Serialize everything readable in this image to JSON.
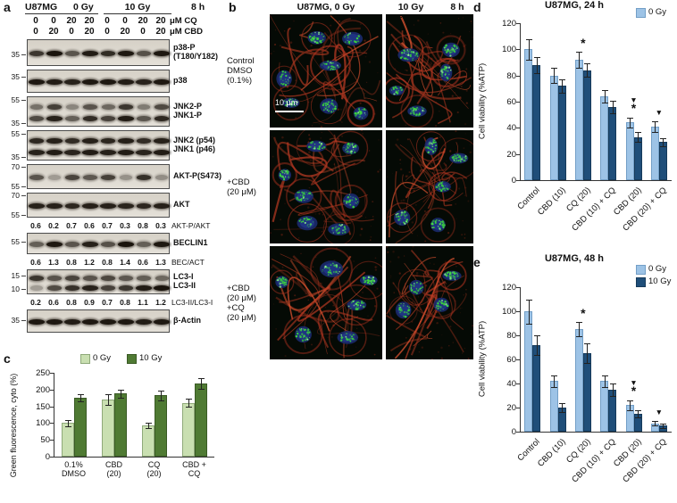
{
  "panels": {
    "a": {
      "panel_label": "a",
      "header": {
        "cell_line": "U87MG",
        "dose_left": "0 Gy",
        "dose_right": "10 Gy",
        "time": "8 h"
      },
      "dose_rows": [
        {
          "values": [
            "0",
            "0",
            "20",
            "20",
            "0",
            "0",
            "20",
            "20"
          ],
          "unit": "μM CQ"
        },
        {
          "values": [
            "0",
            "20",
            "0",
            "20",
            "0",
            "20",
            "0",
            "20"
          ],
          "unit": "μM CBD"
        }
      ],
      "items": [
        {
          "type": "strip",
          "h": 30,
          "label_lines": [
            "p38-P",
            "(T180/Y182)"
          ],
          "markers": [
            {
              "t": "35",
              "f": 0.55
            }
          ],
          "bands": [
            [
              0.75,
              0.92,
              0.6,
              0.88,
              0.8,
              0.9,
              0.62,
              0.9
            ]
          ]
        },
        {
          "type": "strip",
          "h": 26,
          "label_lines": [
            "p38"
          ],
          "markers": [
            {
              "t": "35",
              "f": 0.3
            }
          ],
          "bands": [
            [
              0.9,
              0.88,
              0.85,
              0.9,
              0.9,
              0.88,
              0.85,
              0.9
            ]
          ]
        },
        {
          "type": "strip",
          "h": 34,
          "label_lines": [
            "JNK2-P",
            "JNK1-P"
          ],
          "markers": [
            {
              "t": "55",
              "f": 0.12
            },
            {
              "t": "35",
              "f": 0.88
            }
          ],
          "bands": [
            [
              0.45,
              0.7,
              0.35,
              0.6,
              0.5,
              0.75,
              0.4,
              0.65
            ],
            [
              0.65,
              0.85,
              0.55,
              0.8,
              0.7,
              0.88,
              0.6,
              0.82
            ]
          ]
        },
        {
          "type": "strip",
          "h": 34,
          "label_lines": [
            "JNK2 (p54)",
            "JNK1 (p46)"
          ],
          "markers": [
            {
              "t": "55",
              "f": 0.12
            },
            {
              "t": "35",
              "f": 0.88
            }
          ],
          "bands": [
            [
              0.82,
              0.85,
              0.8,
              0.85,
              0.83,
              0.86,
              0.8,
              0.85
            ],
            [
              0.85,
              0.88,
              0.84,
              0.88,
              0.86,
              0.88,
              0.84,
              0.88
            ]
          ]
        },
        {
          "type": "strip",
          "h": 28,
          "label_lines": [
            "AKT-P(S473)"
          ],
          "markers": [
            {
              "t": "70",
              "f": 0.12
            },
            {
              "t": "55",
              "f": 0.88
            }
          ],
          "bands": [
            [
              0.6,
              0.25,
              0.68,
              0.58,
              0.7,
              0.3,
              0.78,
              0.32
            ]
          ]
        },
        {
          "type": "strip",
          "h": 28,
          "label_lines": [
            "AKT"
          ],
          "markers": [
            {
              "t": "70",
              "f": 0.12
            },
            {
              "t": "55",
              "f": 0.88
            }
          ],
          "bands": [
            [
              0.85,
              0.85,
              0.83,
              0.86,
              0.85,
              0.84,
              0.83,
              0.86
            ]
          ]
        },
        {
          "type": "ratios",
          "values": [
            "0.6",
            "0.2",
            "0.7",
            "0.6",
            "0.7",
            "0.3",
            "0.8",
            "0.3"
          ],
          "label": "AKT-P/AKT"
        },
        {
          "type": "strip",
          "h": 24,
          "label_lines": [
            "BECLIN1"
          ],
          "markers": [
            {
              "t": "55",
              "f": 0.4
            }
          ],
          "bands": [
            [
              0.55,
              0.9,
              0.6,
              0.85,
              0.62,
              0.92,
              0.55,
              0.9
            ]
          ]
        },
        {
          "type": "ratios",
          "values": [
            "0.6",
            "1.3",
            "0.8",
            "1.2",
            "0.8",
            "1.4",
            "0.6",
            "1.3"
          ],
          "label": "BEC/ACT"
        },
        {
          "type": "strip",
          "h": 28,
          "label_lines": [
            "LC3-I",
            "LC3-II"
          ],
          "markers": [
            {
              "t": "15",
              "f": 0.25
            },
            {
              "t": "10",
              "f": 0.78
            }
          ],
          "bands": [
            [
              0.75,
              0.6,
              0.68,
              0.6,
              0.66,
              0.58,
              0.55,
              0.5
            ],
            [
              0.25,
              0.65,
              0.78,
              0.85,
              0.7,
              0.75,
              0.88,
              0.92
            ]
          ]
        },
        {
          "type": "ratios",
          "values": [
            "0.2",
            "0.6",
            "0.8",
            "0.9",
            "0.7",
            "0.8",
            "1.1",
            "1.2"
          ],
          "label": "LC3-II/LC3-I"
        },
        {
          "type": "strip",
          "h": 26,
          "label_lines": [
            "β-Actin"
          ],
          "markers": [
            {
              "t": "35",
              "f": 0.45
            }
          ],
          "bands": [
            [
              0.9,
              0.9,
              0.88,
              0.9,
              0.9,
              0.9,
              0.88,
              0.9
            ]
          ]
        }
      ]
    },
    "b": {
      "panel_label": "b",
      "col_headers": [
        "U87MG, 0 Gy",
        "10 Gy",
        "8 h"
      ],
      "rows": [
        {
          "label_lines": [
            "Control",
            "DMSO",
            "(0.1%)"
          ]
        },
        {
          "label_lines": [
            "+CBD",
            "(20 μM)"
          ]
        },
        {
          "label_lines": [
            "+CBD",
            "(20 μM)",
            "+CQ",
            "(20 μM)"
          ]
        }
      ],
      "scale_bar": "10 μm"
    },
    "c": {
      "panel_label": "c"
    },
    "d": {
      "panel_label": "d"
    },
    "e": {
      "panel_label": "e"
    }
  },
  "chart_data": [
    {
      "id": "c",
      "type": "bar",
      "title": "",
      "ylabel": "Green fluorescence, cyto (%)",
      "ylim": [
        0,
        250
      ],
      "ystep": 50,
      "categories": [
        "0.1%\nDMSO",
        "CBD\n(20)",
        "CQ\n(20)",
        "CBD +\nCQ"
      ],
      "legend_visible": [
        "0 Gy",
        "10 Gy"
      ],
      "legend_position": "top",
      "grid": false,
      "series": [
        {
          "name": "0 Gy",
          "color": "#c9dfb1",
          "border": "#8fa97a",
          "values": [
            100,
            170,
            93,
            160
          ],
          "errors": [
            10,
            15,
            8,
            12
          ]
        },
        {
          "name": "10 Gy",
          "color": "#4f7a33",
          "border": "#3a5a25",
          "values": [
            175,
            188,
            183,
            218
          ],
          "errors": [
            10,
            12,
            15,
            15
          ]
        }
      ],
      "marks": [
        [],
        [],
        [],
        []
      ]
    },
    {
      "id": "d",
      "type": "bar",
      "title": "U87MG, 24 h",
      "ylabel": "Cell viability (%ATP)",
      "ylim": [
        0,
        120
      ],
      "ystep": 20,
      "categories": [
        "Control",
        "CBD (10)",
        "CQ (20)",
        "CBD (10) + CQ",
        "CBD (20)",
        "CBD (20) + CQ"
      ],
      "legend_visible": [
        "0 Gy"
      ],
      "legend_position": "top-right",
      "grid": false,
      "series": [
        {
          "name": "0 Gy",
          "color": "#9dc3e6",
          "border": "#739fc7",
          "values": [
            100,
            80,
            92,
            64,
            44,
            41
          ],
          "errors": [
            8,
            6,
            6,
            5,
            4,
            4
          ]
        },
        {
          "name": "10 Gy",
          "color": "#1f4e79",
          "border": "#163a5a",
          "values": [
            88,
            72,
            84,
            56,
            33,
            29
          ],
          "errors": [
            6,
            5,
            5,
            5,
            4,
            3
          ]
        }
      ],
      "marks": [
        [],
        [],
        [
          "*"
        ],
        [],
        [
          "▼",
          "*"
        ],
        [
          "▼"
        ]
      ]
    },
    {
      "id": "e",
      "type": "bar",
      "title": "U87MG, 48 h",
      "ylabel": "Cell viability (%ATP)",
      "ylim": [
        0,
        120
      ],
      "ystep": 20,
      "categories": [
        "Control",
        "CBD (10)",
        "CQ (20)",
        "CBD (10) + CQ",
        "CBD (20)",
        "CBD (20) + CQ"
      ],
      "legend_visible": [
        "0 Gy",
        "10 Gy"
      ],
      "legend_position": "top-right",
      "grid": false,
      "series": [
        {
          "name": "0 Gy",
          "color": "#9dc3e6",
          "border": "#739fc7",
          "values": [
            100,
            42,
            85,
            42,
            22,
            7
          ],
          "errors": [
            10,
            5,
            6,
            5,
            4,
            2
          ]
        },
        {
          "name": "10 Gy",
          "color": "#1f4e79",
          "border": "#163a5a",
          "values": [
            72,
            20,
            65,
            35,
            15,
            5
          ],
          "errors": [
            8,
            4,
            8,
            5,
            3,
            2
          ]
        }
      ],
      "marks": [
        [],
        [],
        [
          "*"
        ],
        [],
        [
          "▼",
          "*"
        ],
        [
          "▼"
        ]
      ]
    }
  ]
}
